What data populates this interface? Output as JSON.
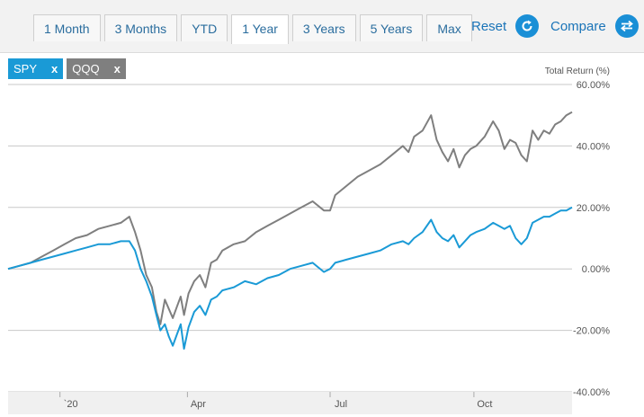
{
  "tabs": [
    {
      "label": "1 Month",
      "active": false
    },
    {
      "label": "3 Months",
      "active": false
    },
    {
      "label": "YTD",
      "active": false
    },
    {
      "label": "1 Year",
      "active": true
    },
    {
      "label": "3 Years",
      "active": false
    },
    {
      "label": "5 Years",
      "active": false
    },
    {
      "label": "Max",
      "active": false
    }
  ],
  "actions": {
    "reset_label": "Reset",
    "reset_icon": "refresh-icon",
    "compare_label": "Compare",
    "compare_icon": "swap-arrows-icon",
    "icon_color": "#1a8fd6"
  },
  "chips": [
    {
      "label": "SPY",
      "remove": "x",
      "color": "#1a9ad6"
    },
    {
      "label": "QQQ",
      "remove": "x",
      "color": "#7f7f7f"
    }
  ],
  "chart_data": {
    "type": "line",
    "ylabel": "Total Return (%)",
    "ylim": [
      -40,
      60
    ],
    "yticks": [
      {
        "value": 60,
        "label": "60.00%"
      },
      {
        "value": 40,
        "label": "40.00%"
      },
      {
        "value": 20,
        "label": "20.00%"
      },
      {
        "value": 0,
        "label": "0.00%"
      },
      {
        "value": -20,
        "label": "-20.00%"
      },
      {
        "value": -40,
        "label": "-40.00%"
      }
    ],
    "xticks": [
      {
        "x": 0.092,
        "label": "`20"
      },
      {
        "x": 0.318,
        "label": "Apr"
      },
      {
        "x": 0.571,
        "label": "Jul"
      },
      {
        "x": 0.826,
        "label": "Oct"
      }
    ],
    "grid": true,
    "series": [
      {
        "name": "QQQ",
        "color": "#7f7f7f",
        "points": [
          [
            0.0,
            0
          ],
          [
            0.02,
            1
          ],
          [
            0.04,
            2
          ],
          [
            0.06,
            4
          ],
          [
            0.08,
            6
          ],
          [
            0.1,
            8
          ],
          [
            0.12,
            10
          ],
          [
            0.14,
            11
          ],
          [
            0.16,
            13
          ],
          [
            0.18,
            14
          ],
          [
            0.2,
            15
          ],
          [
            0.215,
            17
          ],
          [
            0.225,
            12
          ],
          [
            0.235,
            6
          ],
          [
            0.245,
            -2
          ],
          [
            0.255,
            -6
          ],
          [
            0.263,
            -14
          ],
          [
            0.27,
            -18
          ],
          [
            0.278,
            -10
          ],
          [
            0.285,
            -13
          ],
          [
            0.292,
            -16
          ],
          [
            0.3,
            -12
          ],
          [
            0.306,
            -9
          ],
          [
            0.312,
            -15
          ],
          [
            0.32,
            -8
          ],
          [
            0.33,
            -4
          ],
          [
            0.34,
            -2
          ],
          [
            0.35,
            -6
          ],
          [
            0.36,
            2
          ],
          [
            0.37,
            3
          ],
          [
            0.38,
            6
          ],
          [
            0.4,
            8
          ],
          [
            0.42,
            9
          ],
          [
            0.44,
            12
          ],
          [
            0.46,
            14
          ],
          [
            0.48,
            16
          ],
          [
            0.5,
            18
          ],
          [
            0.52,
            20
          ],
          [
            0.54,
            22
          ],
          [
            0.56,
            19
          ],
          [
            0.571,
            19
          ],
          [
            0.58,
            24
          ],
          [
            0.6,
            27
          ],
          [
            0.62,
            30
          ],
          [
            0.64,
            32
          ],
          [
            0.66,
            34
          ],
          [
            0.68,
            37
          ],
          [
            0.7,
            40
          ],
          [
            0.71,
            38
          ],
          [
            0.72,
            43
          ],
          [
            0.735,
            45
          ],
          [
            0.75,
            50
          ],
          [
            0.76,
            42
          ],
          [
            0.77,
            38
          ],
          [
            0.78,
            35
          ],
          [
            0.79,
            39
          ],
          [
            0.8,
            33
          ],
          [
            0.81,
            37
          ],
          [
            0.82,
            39
          ],
          [
            0.83,
            40
          ],
          [
            0.845,
            43
          ],
          [
            0.86,
            48
          ],
          [
            0.87,
            45
          ],
          [
            0.88,
            39
          ],
          [
            0.89,
            42
          ],
          [
            0.9,
            41
          ],
          [
            0.91,
            37
          ],
          [
            0.92,
            35
          ],
          [
            0.93,
            45
          ],
          [
            0.94,
            42
          ],
          [
            0.95,
            45
          ],
          [
            0.96,
            44
          ],
          [
            0.97,
            47
          ],
          [
            0.98,
            48
          ],
          [
            0.99,
            50
          ],
          [
            1.0,
            51
          ]
        ]
      },
      {
        "name": "SPY",
        "color": "#1a9ad6",
        "points": [
          [
            0.0,
            0
          ],
          [
            0.02,
            1
          ],
          [
            0.04,
            2
          ],
          [
            0.06,
            3
          ],
          [
            0.08,
            4
          ],
          [
            0.1,
            5
          ],
          [
            0.12,
            6
          ],
          [
            0.14,
            7
          ],
          [
            0.16,
            8
          ],
          [
            0.18,
            8
          ],
          [
            0.2,
            9
          ],
          [
            0.215,
            9
          ],
          [
            0.225,
            6
          ],
          [
            0.235,
            0
          ],
          [
            0.245,
            -4
          ],
          [
            0.255,
            -9
          ],
          [
            0.263,
            -15
          ],
          [
            0.27,
            -20
          ],
          [
            0.278,
            -18
          ],
          [
            0.285,
            -22
          ],
          [
            0.292,
            -25
          ],
          [
            0.3,
            -21
          ],
          [
            0.306,
            -18
          ],
          [
            0.312,
            -26
          ],
          [
            0.32,
            -19
          ],
          [
            0.33,
            -14
          ],
          [
            0.34,
            -12
          ],
          [
            0.35,
            -15
          ],
          [
            0.36,
            -10
          ],
          [
            0.37,
            -9
          ],
          [
            0.38,
            -7
          ],
          [
            0.4,
            -6
          ],
          [
            0.42,
            -4
          ],
          [
            0.44,
            -5
          ],
          [
            0.46,
            -3
          ],
          [
            0.48,
            -2
          ],
          [
            0.5,
            0
          ],
          [
            0.52,
            1
          ],
          [
            0.54,
            2
          ],
          [
            0.56,
            -1
          ],
          [
            0.571,
            0
          ],
          [
            0.58,
            2
          ],
          [
            0.6,
            3
          ],
          [
            0.62,
            4
          ],
          [
            0.64,
            5
          ],
          [
            0.66,
            6
          ],
          [
            0.68,
            8
          ],
          [
            0.7,
            9
          ],
          [
            0.71,
            8
          ],
          [
            0.72,
            10
          ],
          [
            0.735,
            12
          ],
          [
            0.75,
            16
          ],
          [
            0.76,
            12
          ],
          [
            0.77,
            10
          ],
          [
            0.78,
            9
          ],
          [
            0.79,
            11
          ],
          [
            0.8,
            7
          ],
          [
            0.81,
            9
          ],
          [
            0.82,
            11
          ],
          [
            0.83,
            12
          ],
          [
            0.845,
            13
          ],
          [
            0.86,
            15
          ],
          [
            0.87,
            14
          ],
          [
            0.88,
            13
          ],
          [
            0.89,
            14
          ],
          [
            0.9,
            10
          ],
          [
            0.91,
            8
          ],
          [
            0.92,
            10
          ],
          [
            0.93,
            15
          ],
          [
            0.94,
            16
          ],
          [
            0.95,
            17
          ],
          [
            0.96,
            17
          ],
          [
            0.97,
            18
          ],
          [
            0.98,
            19
          ],
          [
            0.99,
            19
          ],
          [
            1.0,
            20
          ]
        ]
      }
    ]
  }
}
